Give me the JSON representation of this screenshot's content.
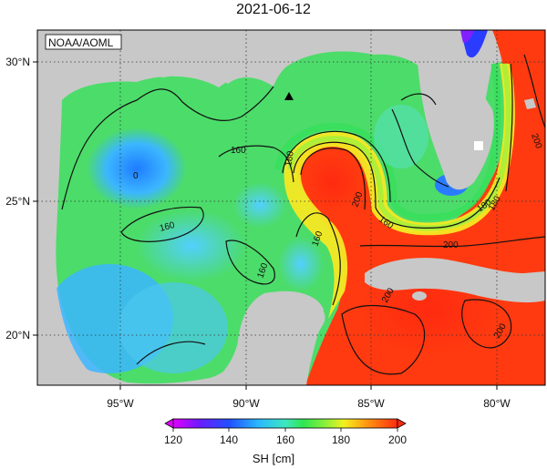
{
  "title": "2021-06-12",
  "source": "NOAA/AOML",
  "x_ticks": [
    "95°W",
    "90°W",
    "85°W",
    "80°W"
  ],
  "y_ticks": [
    "30°N",
    "25°N",
    "20°N"
  ],
  "contour_labels": [
    "0",
    "160",
    "160",
    "160",
    "180",
    "200",
    "160",
    "180",
    "160",
    "200",
    "180",
    "200",
    "200",
    "200"
  ],
  "colorbar": {
    "label": "SH [cm]",
    "ticks": [
      "120",
      "140",
      "160",
      "180",
      "200"
    ],
    "range": [
      120,
      200
    ]
  },
  "colors": {
    "land": "#c8c8c8",
    "warm": "#ff3a10",
    "cool": "#3c9cff",
    "mid": "#4cdc6a"
  }
}
